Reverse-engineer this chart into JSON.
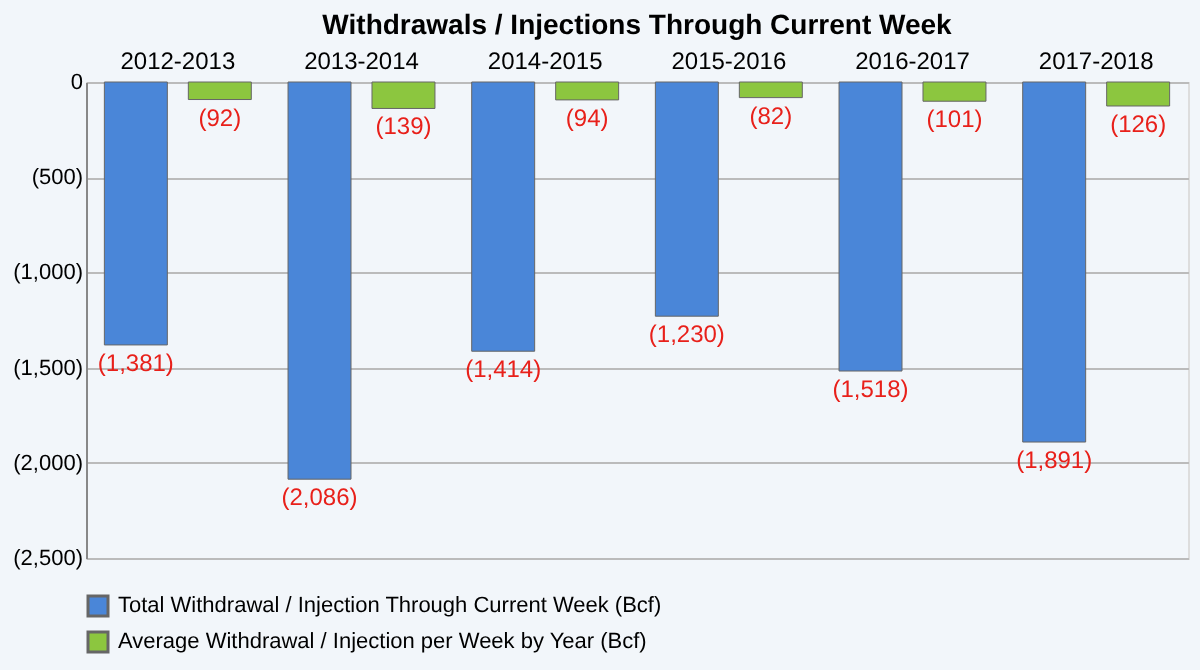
{
  "chart_data": {
    "type": "bar",
    "title": "Withdrawals / Injections Through Current Week",
    "categories": [
      "2012-2013",
      "2013-2014",
      "2014-2015",
      "2015-2016",
      "2016-2017",
      "2017-2018"
    ],
    "series": [
      {
        "name": "Total Withdrawal / Injection Through Current Week (Bcf)",
        "color": "#4a86d8",
        "values": [
          -1381,
          -2086,
          -1414,
          -1230,
          -1518,
          -1891
        ],
        "value_labels": [
          "(1,381)",
          "(2,086)",
          "(1,414)",
          "(1,230)",
          "(1,518)",
          "(1,891)"
        ]
      },
      {
        "name": "Average Withdrawal / Injection per Week by Year (Bcf)",
        "color": "#8cc63f",
        "values": [
          -92,
          -139,
          -94,
          -82,
          -101,
          -126
        ],
        "value_labels": [
          "(92)",
          "(139)",
          "(94)",
          "(82)",
          "(101)",
          "(126)"
        ]
      }
    ],
    "ylim": [
      -2500,
      0
    ],
    "yticks": [
      {
        "value": -2500,
        "label": "(2,500)"
      },
      {
        "value": -2000,
        "label": "(2,000)"
      },
      {
        "value": -1500,
        "label": "(1,500)"
      },
      {
        "value": -1000,
        "label": "(1,000)"
      },
      {
        "value": -500,
        "label": "(500)"
      },
      0
    ],
    "grid": "y",
    "legend": "bottom"
  }
}
